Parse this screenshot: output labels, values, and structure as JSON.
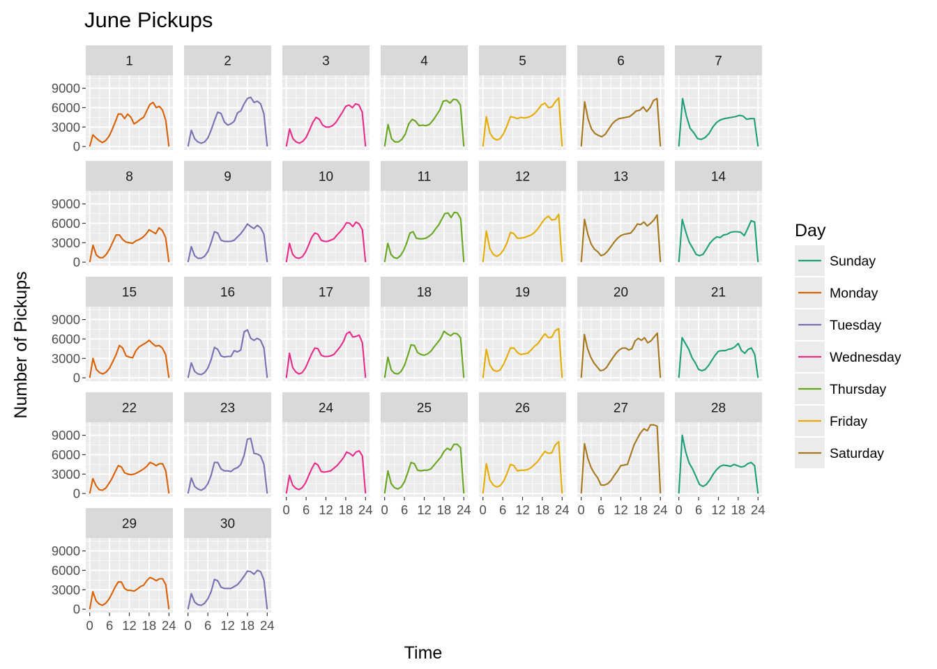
{
  "chart_data": {
    "type": "line",
    "title": "June Pickups",
    "xlabel": "Time",
    "ylabel": "Number of Pickups",
    "facet_variable": "day_of_month",
    "x_ticks": [
      0,
      6,
      12,
      18,
      24
    ],
    "x_tick_labels": [
      "0",
      "6",
      "12",
      "18",
      "24"
    ],
    "y_ticks": [
      0,
      3000,
      6000,
      9000
    ],
    "y_tick_labels": [
      "0",
      "3000",
      "6000",
      "9000"
    ],
    "xlim": [
      -1.2,
      25.2
    ],
    "ylim": [
      -520,
      11000
    ],
    "grid": true,
    "legend": {
      "title": "Day",
      "position": "right",
      "entries": [
        {
          "name": "Sunday",
          "color": "#1b9e77"
        },
        {
          "name": "Monday",
          "color": "#d95f02"
        },
        {
          "name": "Tuesday",
          "color": "#7570b3"
        },
        {
          "name": "Wednesday",
          "color": "#e7298a"
        },
        {
          "name": "Thursday",
          "color": "#66a61e"
        },
        {
          "name": "Friday",
          "color": "#e6ab02"
        },
        {
          "name": "Saturday",
          "color": "#a6761d"
        }
      ]
    },
    "panels": [
      {
        "label": "1",
        "day": "Monday",
        "values": [
          0,
          1800,
          1300,
          900,
          600,
          900,
          1500,
          2500,
          3700,
          5000,
          5000,
          4300,
          5000,
          4500,
          3500,
          3800,
          4200,
          4500,
          5500,
          6500,
          6800,
          6000,
          6200,
          5600,
          4000,
          0
        ]
      },
      {
        "label": "2",
        "day": "Tuesday",
        "values": [
          0,
          2500,
          1200,
          700,
          500,
          700,
          1300,
          2500,
          4000,
          5300,
          5100,
          3800,
          3300,
          3500,
          3900,
          5200,
          5500,
          6600,
          7400,
          7600,
          6800,
          7000,
          6600,
          5000,
          0
        ]
      },
      {
        "label": "3",
        "day": "Wednesday",
        "values": [
          0,
          2700,
          1200,
          700,
          500,
          800,
          1400,
          2500,
          3700,
          4500,
          4200,
          3300,
          3000,
          3000,
          3200,
          3700,
          4500,
          5300,
          6200,
          6400,
          6000,
          6600,
          6400,
          5300,
          0
        ]
      },
      {
        "label": "4",
        "day": "Thursday",
        "values": [
          0,
          3400,
          1200,
          700,
          700,
          1100,
          1900,
          3500,
          4200,
          3900,
          3200,
          3300,
          3200,
          3400,
          4000,
          4800,
          5600,
          7000,
          7100,
          6700,
          7300,
          7200,
          6400,
          0
        ]
      },
      {
        "label": "5",
        "day": "Friday",
        "values": [
          0,
          4600,
          2100,
          1300,
          1000,
          1200,
          2000,
          3200,
          4600,
          4500,
          4300,
          4500,
          4400,
          4500,
          4700,
          5100,
          5700,
          6400,
          6700,
          6000,
          6100,
          6900,
          7500,
          0
        ]
      },
      {
        "label": "6",
        "day": "Saturday",
        "values": [
          0,
          6900,
          4200,
          2700,
          2000,
          1700,
          1500,
          1900,
          2700,
          3500,
          4000,
          4300,
          4400,
          4500,
          4600,
          5000,
          5500,
          5600,
          6100,
          5400,
          6000,
          7100,
          7400,
          0
        ]
      },
      {
        "label": "7",
        "day": "Sunday",
        "values": [
          0,
          7400,
          4700,
          2800,
          2100,
          1200,
          1100,
          1400,
          2000,
          3000,
          3700,
          4100,
          4300,
          4400,
          4500,
          4600,
          4800,
          4700,
          4200,
          4300,
          4300,
          0
        ]
      },
      {
        "label": "8",
        "day": "Monday",
        "values": [
          0,
          2600,
          1100,
          700,
          700,
          1200,
          2000,
          3100,
          4200,
          4200,
          3500,
          3100,
          3000,
          2900,
          3300,
          3500,
          3800,
          4300,
          5000,
          4700,
          4400,
          5300,
          4900,
          3800,
          0
        ]
      },
      {
        "label": "9",
        "day": "Tuesday",
        "values": [
          0,
          2400,
          1000,
          600,
          600,
          900,
          1600,
          3000,
          4700,
          4500,
          3400,
          3200,
          3200,
          3200,
          3400,
          3900,
          4400,
          5100,
          5900,
          5500,
          5200,
          5700,
          5300,
          4300,
          0
        ]
      },
      {
        "label": "10",
        "day": "Wednesday",
        "values": [
          0,
          2900,
          1200,
          700,
          600,
          800,
          1500,
          2600,
          3800,
          4500,
          4300,
          3400,
          3200,
          3200,
          3400,
          3600,
          4200,
          4700,
          5300,
          6100,
          6000,
          5500,
          6200,
          5900,
          5000,
          0
        ]
      },
      {
        "label": "11",
        "day": "Thursday",
        "values": [
          0,
          2900,
          1200,
          700,
          600,
          1000,
          1800,
          3000,
          4500,
          4700,
          3700,
          3600,
          3600,
          3700,
          4000,
          4400,
          5100,
          5700,
          6600,
          7500,
          7600,
          6900,
          7700,
          7600,
          6700,
          0
        ]
      },
      {
        "label": "12",
        "day": "Friday",
        "values": [
          0,
          4800,
          2100,
          1200,
          900,
          1200,
          1900,
          3000,
          4600,
          4400,
          3700,
          3700,
          3800,
          4000,
          4200,
          4600,
          5200,
          6000,
          6700,
          7100,
          6500,
          6600,
          7400,
          0
        ]
      },
      {
        "label": "13",
        "day": "Saturday",
        "values": [
          0,
          6600,
          4300,
          2800,
          2000,
          1600,
          1000,
          1200,
          1700,
          2400,
          3100,
          3700,
          4100,
          4300,
          4400,
          4500,
          5100,
          5900,
          5800,
          6200,
          5600,
          6000,
          6500,
          7300,
          0
        ]
      },
      {
        "label": "14",
        "day": "Sunday",
        "values": [
          0,
          6600,
          4700,
          3100,
          2200,
          1200,
          1000,
          1200,
          2000,
          2900,
          3500,
          3900,
          3800,
          4200,
          4300,
          4600,
          4700,
          4700,
          4600,
          4100,
          5200,
          6400,
          6200,
          0
        ]
      },
      {
        "label": "15",
        "day": "Monday",
        "values": [
          0,
          3000,
          1300,
          800,
          600,
          900,
          1500,
          2500,
          3600,
          5000,
          4600,
          3400,
          3200,
          3100,
          4200,
          4800,
          5100,
          5400,
          5800,
          5300,
          4900,
          5000,
          4600,
          3600,
          0
        ]
      },
      {
        "label": "16",
        "day": "Tuesday",
        "values": [
          0,
          2300,
          1000,
          600,
          500,
          800,
          1500,
          2800,
          4700,
          4400,
          3400,
          3200,
          3300,
          3300,
          4200,
          4000,
          4300,
          7100,
          7400,
          6100,
          5800,
          6100,
          5800,
          4600,
          0
        ]
      },
      {
        "label": "17",
        "day": "Wednesday",
        "values": [
          0,
          3800,
          1600,
          900,
          600,
          800,
          1500,
          2600,
          3700,
          4600,
          4500,
          3500,
          3300,
          3300,
          3400,
          3600,
          4200,
          4800,
          5600,
          6800,
          7100,
          6300,
          6400,
          6600,
          5400,
          0
        ]
      },
      {
        "label": "18",
        "day": "Thursday",
        "values": [
          0,
          3200,
          1200,
          700,
          600,
          1000,
          1900,
          3400,
          5100,
          5000,
          3900,
          3600,
          3500,
          3700,
          4100,
          4800,
          5400,
          6100,
          7200,
          6800,
          6500,
          6900,
          6800,
          6200,
          0
        ]
      },
      {
        "label": "19",
        "day": "Friday",
        "values": [
          0,
          4400,
          2000,
          1200,
          1000,
          1200,
          2100,
          3300,
          4600,
          4600,
          3900,
          3600,
          3700,
          3800,
          4300,
          4900,
          5300,
          6100,
          6800,
          6200,
          6300,
          7300,
          7600,
          0
        ]
      },
      {
        "label": "20",
        "day": "Saturday",
        "values": [
          0,
          6700,
          4500,
          3200,
          2300,
          1700,
          1100,
          1200,
          1600,
          2400,
          3100,
          3800,
          4300,
          4600,
          4600,
          4300,
          4500,
          5700,
          6100,
          5800,
          6200,
          5400,
          5700,
          6300,
          6900,
          0
        ]
      },
      {
        "label": "21",
        "day": "Sunday",
        "values": [
          0,
          6200,
          5300,
          4400,
          3100,
          2300,
          1300,
          1100,
          1300,
          1900,
          2700,
          3500,
          4100,
          4200,
          4200,
          4400,
          4500,
          4800,
          5300,
          4200,
          3800,
          4400,
          4600,
          3600,
          0
        ]
      },
      {
        "label": "22",
        "day": "Monday",
        "values": [
          0,
          2300,
          1200,
          600,
          500,
          800,
          1500,
          2300,
          3300,
          4300,
          4100,
          3200,
          3000,
          2900,
          3000,
          3200,
          3500,
          3800,
          4200,
          4800,
          4600,
          4300,
          4600,
          4600,
          3500,
          0
        ]
      },
      {
        "label": "23",
        "day": "Tuesday",
        "values": [
          0,
          2400,
          1100,
          700,
          500,
          800,
          1500,
          2800,
          4800,
          4800,
          3800,
          3500,
          3500,
          3400,
          3800,
          4000,
          4500,
          5900,
          8400,
          8500,
          6200,
          6100,
          5800,
          4500,
          0
        ]
      },
      {
        "label": "24",
        "day": "Wednesday",
        "values": [
          0,
          2800,
          1300,
          800,
          600,
          900,
          1600,
          2700,
          3800,
          4700,
          4400,
          3400,
          3300,
          3400,
          3500,
          3900,
          4300,
          4900,
          5500,
          6400,
          6200,
          5800,
          6400,
          6600,
          5800,
          0
        ]
      },
      {
        "label": "25",
        "day": "Thursday",
        "values": [
          0,
          3500,
          1500,
          900,
          700,
          1000,
          1800,
          3200,
          4800,
          4600,
          3600,
          3500,
          3600,
          3600,
          3800,
          4400,
          5000,
          5600,
          6500,
          7000,
          6700,
          7600,
          7600,
          7100,
          0
        ]
      },
      {
        "label": "26",
        "day": "Friday",
        "values": [
          0,
          4600,
          2100,
          1300,
          1000,
          1200,
          1900,
          3100,
          4500,
          4300,
          3500,
          3600,
          3600,
          3700,
          4000,
          4500,
          5000,
          5800,
          6500,
          6200,
          6300,
          7500,
          8000,
          0
        ]
      },
      {
        "label": "27",
        "day": "Saturday",
        "values": [
          0,
          7700,
          5400,
          4000,
          3100,
          2400,
          1300,
          1300,
          1500,
          2000,
          2800,
          3500,
          4300,
          4400,
          4500,
          6000,
          7500,
          8500,
          9400,
          10000,
          9700,
          10600,
          10600,
          10400,
          0
        ]
      },
      {
        "label": "28",
        "day": "Sunday",
        "values": [
          0,
          9000,
          6400,
          4700,
          3800,
          2600,
          1400,
          1100,
          1400,
          2100,
          3000,
          3700,
          4200,
          4400,
          4300,
          4200,
          4500,
          4300,
          4100,
          4200,
          4600,
          4800,
          4300,
          0
        ]
      },
      {
        "label": "29",
        "day": "Monday",
        "values": [
          0,
          2700,
          1300,
          800,
          600,
          900,
          1500,
          2400,
          3400,
          4200,
          4200,
          3200,
          2900,
          2900,
          2800,
          3100,
          3500,
          3700,
          4400,
          4900,
          4700,
          4400,
          4700,
          4700,
          3800,
          0
        ]
      },
      {
        "label": "30",
        "day": "Tuesday",
        "values": [
          0,
          2400,
          1100,
          700,
          600,
          900,
          1600,
          2700,
          4600,
          4400,
          3400,
          3200,
          3200,
          3200,
          3500,
          3800,
          4400,
          5100,
          5900,
          5800,
          5400,
          6000,
          5800,
          4500,
          0
        ]
      }
    ]
  }
}
